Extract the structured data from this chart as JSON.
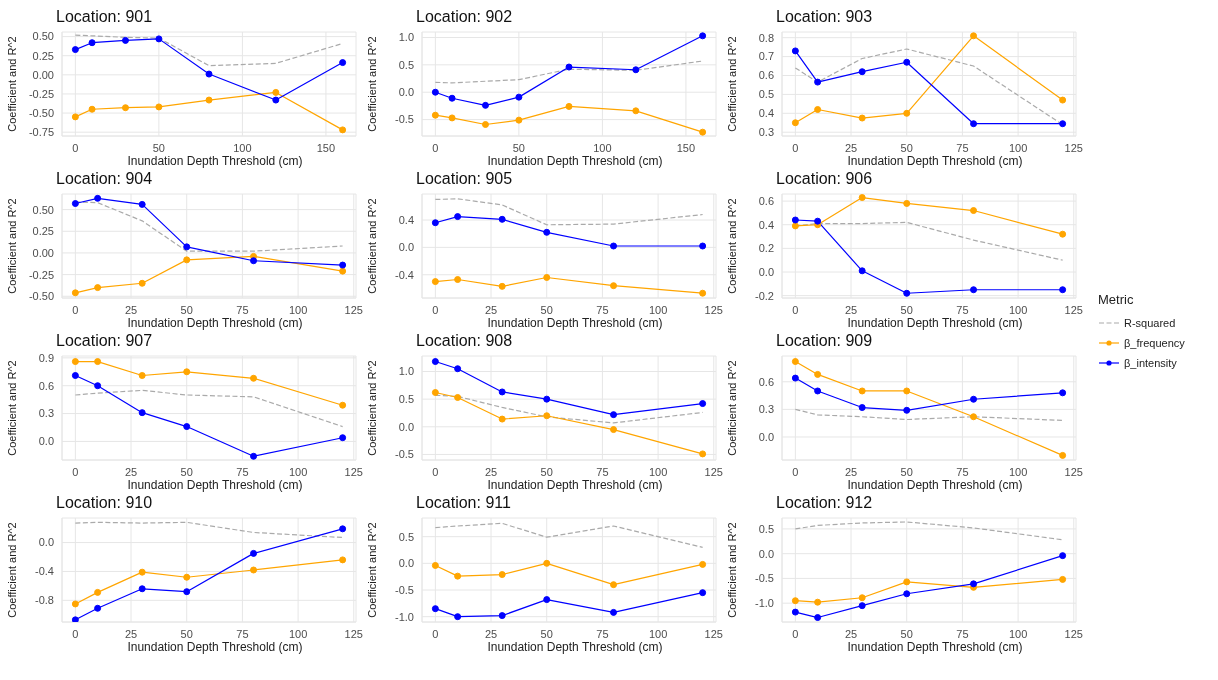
{
  "chart_data": [
    {
      "type": "line",
      "title": "Location: 901",
      "xlabel": "Inundation Depth Threshold (cm)",
      "ylabel": "Coefficient and R^2",
      "x": [
        0,
        10,
        30,
        50,
        80,
        120,
        160
      ],
      "xlim": [
        -8,
        168
      ],
      "xticks": [
        0,
        50,
        100,
        150
      ],
      "ylim": [
        -0.8,
        0.56
      ],
      "yticks": [
        {
          "value": -0.75,
          "label": "-0.75"
        },
        {
          "value": -0.5,
          "label": "-0.50"
        },
        {
          "value": -0.25,
          "label": "-0.25"
        },
        {
          "value": 0,
          "label": "0.00"
        },
        {
          "value": 0.25,
          "label": "0.25"
        },
        {
          "value": 0.5,
          "label": "0.50"
        }
      ],
      "grid": true,
      "marker": "circle",
      "line_style": "solid",
      "series": [
        {
          "color": "#aaaaaa",
          "line_style": "dashed",
          "marker": "none",
          "values": [
            0.52,
            0.51,
            0.49,
            0.48,
            0.12,
            0.15,
            0.41
          ]
        },
        {
          "color": "#ffa500",
          "values": [
            -0.55,
            -0.45,
            -0.43,
            -0.42,
            -0.33,
            -0.23,
            -0.72
          ]
        },
        {
          "color": "#0000ff",
          "values": [
            0.33,
            0.42,
            0.45,
            0.47,
            0.01,
            -0.33,
            0.16
          ]
        }
      ]
    },
    {
      "type": "line",
      "title": "Location: 902",
      "xlabel": "Inundation Depth Threshold (cm)",
      "ylabel": "Coefficient and R^2",
      "x": [
        0,
        10,
        30,
        50,
        80,
        120,
        160
      ],
      "xlim": [
        -8,
        168
      ],
      "xticks": [
        0,
        50,
        100,
        150
      ],
      "ylim": [
        -0.8,
        1.1
      ],
      "yticks": [
        {
          "value": -0.5,
          "label": "-0.5"
        },
        {
          "value": 0,
          "label": "0.0"
        },
        {
          "value": 0.5,
          "label": "0.5"
        },
        {
          "value": 1,
          "label": "1.0"
        }
      ],
      "grid": true,
      "marker": "circle",
      "line_style": "solid",
      "series": [
        {
          "color": "#aaaaaa",
          "line_style": "dashed",
          "marker": "none",
          "values": [
            0.18,
            0.17,
            0.2,
            0.23,
            0.42,
            0.4,
            0.57
          ]
        },
        {
          "color": "#ffa500",
          "values": [
            -0.42,
            -0.47,
            -0.59,
            -0.51,
            -0.26,
            -0.34,
            -0.73
          ]
        },
        {
          "color": "#0000ff",
          "values": [
            0,
            -0.11,
            -0.24,
            -0.09,
            0.46,
            0.41,
            1.03
          ]
        }
      ]
    },
    {
      "type": "line",
      "title": "Location: 903",
      "xlabel": "Inundation Depth Threshold (cm)",
      "ylabel": "Coefficient and R^2",
      "x": [
        0,
        10,
        30,
        50,
        80,
        120
      ],
      "xlim": [
        -6,
        126
      ],
      "xticks": [
        0,
        25,
        50,
        75,
        100,
        125
      ],
      "ylim": [
        0.28,
        0.83
      ],
      "yticks": [
        {
          "value": 0.3,
          "label": "0.3"
        },
        {
          "value": 0.4,
          "label": "0.4"
        },
        {
          "value": 0.5,
          "label": "0.5"
        },
        {
          "value": 0.6,
          "label": "0.6"
        },
        {
          "value": 0.7,
          "label": "0.7"
        },
        {
          "value": 0.8,
          "label": "0.8"
        }
      ],
      "grid": true,
      "marker": "circle",
      "line_style": "solid",
      "series": [
        {
          "color": "#aaaaaa",
          "line_style": "dashed",
          "marker": "none",
          "values": [
            0.64,
            0.565,
            0.69,
            0.74,
            0.65,
            0.34
          ]
        },
        {
          "color": "#ffa500",
          "values": [
            0.35,
            0.42,
            0.375,
            0.4,
            0.81,
            0.47
          ]
        },
        {
          "color": "#0000ff",
          "values": [
            0.73,
            0.565,
            0.62,
            0.67,
            0.345,
            0.345
          ]
        }
      ]
    },
    {
      "type": "line",
      "title": "Location: 904",
      "xlabel": "Inundation Depth Threshold (cm)",
      "ylabel": "Coefficient and R^2",
      "x": [
        0,
        10,
        30,
        50,
        80,
        120
      ],
      "xlim": [
        -6,
        126
      ],
      "xticks": [
        0,
        25,
        50,
        75,
        100,
        125
      ],
      "ylim": [
        -0.52,
        0.68
      ],
      "yticks": [
        {
          "value": -0.5,
          "label": "-0.50"
        },
        {
          "value": -0.25,
          "label": "-0.25"
        },
        {
          "value": 0,
          "label": "0.00"
        },
        {
          "value": 0.25,
          "label": "0.25"
        },
        {
          "value": 0.5,
          "label": "0.50"
        }
      ],
      "grid": true,
      "marker": "circle",
      "line_style": "solid",
      "series": [
        {
          "color": "#aaaaaa",
          "line_style": "dashed",
          "marker": "none",
          "values": [
            0.59,
            0.58,
            0.37,
            0.02,
            0.02,
            0.08
          ]
        },
        {
          "color": "#ffa500",
          "values": [
            -0.46,
            -0.4,
            -0.35,
            -0.08,
            -0.04,
            -0.21
          ]
        },
        {
          "color": "#0000ff",
          "values": [
            0.57,
            0.63,
            0.56,
            0.07,
            -0.09,
            -0.14
          ]
        }
      ]
    },
    {
      "type": "line",
      "title": "Location: 905",
      "xlabel": "Inundation Depth Threshold (cm)",
      "ylabel": "Coefficient and R^2",
      "x": [
        0,
        10,
        30,
        50,
        80,
        120
      ],
      "xlim": [
        -6,
        126
      ],
      "xticks": [
        0,
        25,
        50,
        75,
        100,
        125
      ],
      "ylim": [
        -0.74,
        0.78
      ],
      "yticks": [
        {
          "value": -0.4,
          "label": "-0.4"
        },
        {
          "value": 0,
          "label": "0.0"
        },
        {
          "value": 0.4,
          "label": "0.4"
        }
      ],
      "grid": true,
      "marker": "circle",
      "line_style": "solid",
      "series": [
        {
          "color": "#aaaaaa",
          "line_style": "dashed",
          "marker": "none",
          "values": [
            0.7,
            0.71,
            0.62,
            0.33,
            0.34,
            0.48
          ]
        },
        {
          "color": "#ffa500",
          "values": [
            -0.5,
            -0.47,
            -0.57,
            -0.44,
            -0.56,
            -0.67
          ]
        },
        {
          "color": "#0000ff",
          "values": [
            0.36,
            0.45,
            0.41,
            0.22,
            0.02,
            0.02
          ]
        }
      ]
    },
    {
      "type": "line",
      "title": "Location: 906",
      "xlabel": "Inundation Depth Threshold (cm)",
      "ylabel": "Coefficient and R^2",
      "legend": "right",
      "legend_title": "Metric",
      "x": [
        0,
        10,
        30,
        50,
        80,
        120
      ],
      "xlim": [
        -6,
        126
      ],
      "xticks": [
        0,
        25,
        50,
        75,
        100,
        125
      ],
      "ylim": [
        -0.22,
        0.66
      ],
      "yticks": [
        {
          "value": -0.2,
          "label": "-0.2"
        },
        {
          "value": 0,
          "label": "0.0"
        },
        {
          "value": 0.2,
          "label": "0.2"
        },
        {
          "value": 0.4,
          "label": "0.4"
        },
        {
          "value": 0.6,
          "label": "0.6"
        }
      ],
      "grid": true,
      "marker": "circle",
      "line_style": "solid",
      "series": [
        {
          "name": "R-squared",
          "color": "#aaaaaa",
          "line_style": "dashed",
          "marker": "none",
          "values": [
            0.39,
            0.41,
            0.41,
            0.42,
            0.27,
            0.1
          ]
        },
        {
          "name": "β_frequency",
          "color": "#ffa500",
          "values": [
            0.39,
            0.4,
            0.63,
            0.58,
            0.52,
            0.32
          ]
        },
        {
          "name": "β_intensity",
          "color": "#0000ff",
          "values": [
            0.44,
            0.43,
            0.01,
            -0.18,
            -0.15,
            -0.15
          ]
        }
      ]
    },
    {
      "type": "line",
      "title": "Location: 907",
      "xlabel": "Inundation Depth Threshold (cm)",
      "ylabel": "Coefficient and R^2",
      "x": [
        0,
        10,
        30,
        50,
        80,
        120
      ],
      "xlim": [
        -6,
        126
      ],
      "xticks": [
        0,
        25,
        50,
        75,
        100,
        125
      ],
      "ylim": [
        -0.2,
        0.92
      ],
      "yticks": [
        {
          "value": 0,
          "label": "0.0"
        },
        {
          "value": 0.3,
          "label": "0.3"
        },
        {
          "value": 0.6,
          "label": "0.6"
        },
        {
          "value": 0.9,
          "label": "0.9"
        }
      ],
      "grid": true,
      "marker": "circle",
      "line_style": "solid",
      "series": [
        {
          "color": "#aaaaaa",
          "line_style": "dashed",
          "marker": "none",
          "values": [
            0.5,
            0.52,
            0.55,
            0.5,
            0.48,
            0.16
          ]
        },
        {
          "color": "#ffa500",
          "values": [
            0.86,
            0.86,
            0.71,
            0.75,
            0.68,
            0.39
          ]
        },
        {
          "color": "#0000ff",
          "values": [
            0.71,
            0.6,
            0.31,
            0.16,
            -0.16,
            0.04
          ]
        }
      ]
    },
    {
      "type": "line",
      "title": "Location: 908",
      "xlabel": "Inundation Depth Threshold (cm)",
      "ylabel": "Coefficient and R^2",
      "x": [
        0,
        10,
        30,
        50,
        80,
        120
      ],
      "xlim": [
        -6,
        126
      ],
      "xticks": [
        0,
        25,
        50,
        75,
        100,
        125
      ],
      "ylim": [
        -0.6,
        1.28
      ],
      "yticks": [
        {
          "value": -0.5,
          "label": "-0.5"
        },
        {
          "value": 0,
          "label": "0.0"
        },
        {
          "value": 0.5,
          "label": "0.5"
        },
        {
          "value": 1,
          "label": "1.0"
        }
      ],
      "grid": true,
      "marker": "circle",
      "line_style": "solid",
      "series": [
        {
          "color": "#aaaaaa",
          "line_style": "dashed",
          "marker": "none",
          "values": [
            0.57,
            0.55,
            0.35,
            0.18,
            0.07,
            0.26
          ]
        },
        {
          "color": "#ffa500",
          "values": [
            0.62,
            0.53,
            0.14,
            0.2,
            -0.05,
            -0.49
          ]
        },
        {
          "color": "#0000ff",
          "values": [
            1.18,
            1.05,
            0.63,
            0.5,
            0.22,
            0.42
          ]
        }
      ]
    },
    {
      "type": "line",
      "title": "Location: 909",
      "xlabel": "Inundation Depth Threshold (cm)",
      "ylabel": "Coefficient and R^2",
      "x": [
        0,
        10,
        30,
        50,
        80,
        120
      ],
      "xlim": [
        -6,
        126
      ],
      "xticks": [
        0,
        25,
        50,
        75,
        100,
        125
      ],
      "ylim": [
        -0.25,
        0.88
      ],
      "yticks": [
        {
          "value": 0,
          "label": "0.0"
        },
        {
          "value": 0.3,
          "label": "0.3"
        },
        {
          "value": 0.6,
          "label": "0.6"
        }
      ],
      "grid": true,
      "marker": "circle",
      "line_style": "solid",
      "series": [
        {
          "color": "#aaaaaa",
          "line_style": "dashed",
          "marker": "none",
          "values": [
            0.3,
            0.24,
            0.22,
            0.19,
            0.22,
            0.18
          ]
        },
        {
          "color": "#ffa500",
          "values": [
            0.82,
            0.68,
            0.5,
            0.5,
            0.22,
            -0.2
          ]
        },
        {
          "color": "#0000ff",
          "values": [
            0.64,
            0.5,
            0.32,
            0.29,
            0.41,
            0.48
          ]
        }
      ]
    },
    {
      "type": "line",
      "title": "Location: 910",
      "xlabel": "Inundation Depth Threshold (cm)",
      "ylabel": "Coefficient and R^2",
      "x": [
        0,
        10,
        30,
        50,
        80,
        120
      ],
      "xlim": [
        -6,
        126
      ],
      "xticks": [
        0,
        25,
        50,
        75,
        100,
        125
      ],
      "ylim": [
        -1.1,
        0.34
      ],
      "yticks": [
        {
          "value": -0.8,
          "label": "-0.8"
        },
        {
          "value": -0.4,
          "label": "-0.4"
        },
        {
          "value": 0,
          "label": "0.0"
        }
      ],
      "grid": true,
      "marker": "circle",
      "line_style": "solid",
      "series": [
        {
          "color": "#aaaaaa",
          "line_style": "dashed",
          "marker": "none",
          "values": [
            0.27,
            0.28,
            0.27,
            0.28,
            0.14,
            0.07
          ]
        },
        {
          "color": "#ffa500",
          "values": [
            -0.85,
            -0.69,
            -0.41,
            -0.48,
            -0.38,
            -0.24
          ]
        },
        {
          "color": "#0000ff",
          "values": [
            -1.07,
            -0.91,
            -0.64,
            -0.68,
            -0.15,
            0.19
          ]
        }
      ]
    },
    {
      "type": "line",
      "title": "Location: 911",
      "xlabel": "Inundation Depth Threshold (cm)",
      "ylabel": "Coefficient and R^2",
      "x": [
        0,
        10,
        30,
        50,
        80,
        120
      ],
      "xlim": [
        -6,
        126
      ],
      "xticks": [
        0,
        25,
        50,
        75,
        100,
        125
      ],
      "ylim": [
        -1.1,
        0.85
      ],
      "yticks": [
        {
          "value": -1,
          "label": "-1.0"
        },
        {
          "value": -0.5,
          "label": "-0.5"
        },
        {
          "value": 0,
          "label": "0.0"
        },
        {
          "value": 0.5,
          "label": "0.5"
        }
      ],
      "grid": true,
      "marker": "circle",
      "line_style": "solid",
      "series": [
        {
          "color": "#aaaaaa",
          "line_style": "dashed",
          "marker": "none",
          "values": [
            0.67,
            0.7,
            0.75,
            0.49,
            0.7,
            0.3
          ]
        },
        {
          "color": "#ffa500",
          "values": [
            -0.04,
            -0.24,
            -0.21,
            0,
            -0.4,
            -0.02
          ]
        },
        {
          "color": "#0000ff",
          "values": [
            -0.85,
            -1,
            -0.98,
            -0.68,
            -0.92,
            -0.55
          ]
        }
      ]
    },
    {
      "type": "line",
      "title": "Location: 912",
      "xlabel": "Inundation Depth Threshold (cm)",
      "ylabel": "Coefficient and R^2",
      "x": [
        0,
        10,
        30,
        50,
        80,
        120
      ],
      "xlim": [
        -6,
        126
      ],
      "xticks": [
        0,
        25,
        50,
        75,
        100,
        125
      ],
      "ylim": [
        -1.38,
        0.72
      ],
      "yticks": [
        {
          "value": -1,
          "label": "-1.0"
        },
        {
          "value": -0.5,
          "label": "-0.5"
        },
        {
          "value": 0,
          "label": "0.0"
        },
        {
          "value": 0.5,
          "label": "0.5"
        }
      ],
      "grid": true,
      "marker": "circle",
      "line_style": "solid",
      "series": [
        {
          "color": "#aaaaaa",
          "line_style": "dashed",
          "marker": "none",
          "values": [
            0.5,
            0.57,
            0.62,
            0.64,
            0.52,
            0.28
          ]
        },
        {
          "color": "#ffa500",
          "values": [
            -0.95,
            -0.98,
            -0.89,
            -0.57,
            -0.68,
            -0.52
          ]
        },
        {
          "color": "#0000ff",
          "values": [
            -1.18,
            -1.29,
            -1.05,
            -0.81,
            -0.61,
            -0.04
          ]
        }
      ]
    }
  ]
}
